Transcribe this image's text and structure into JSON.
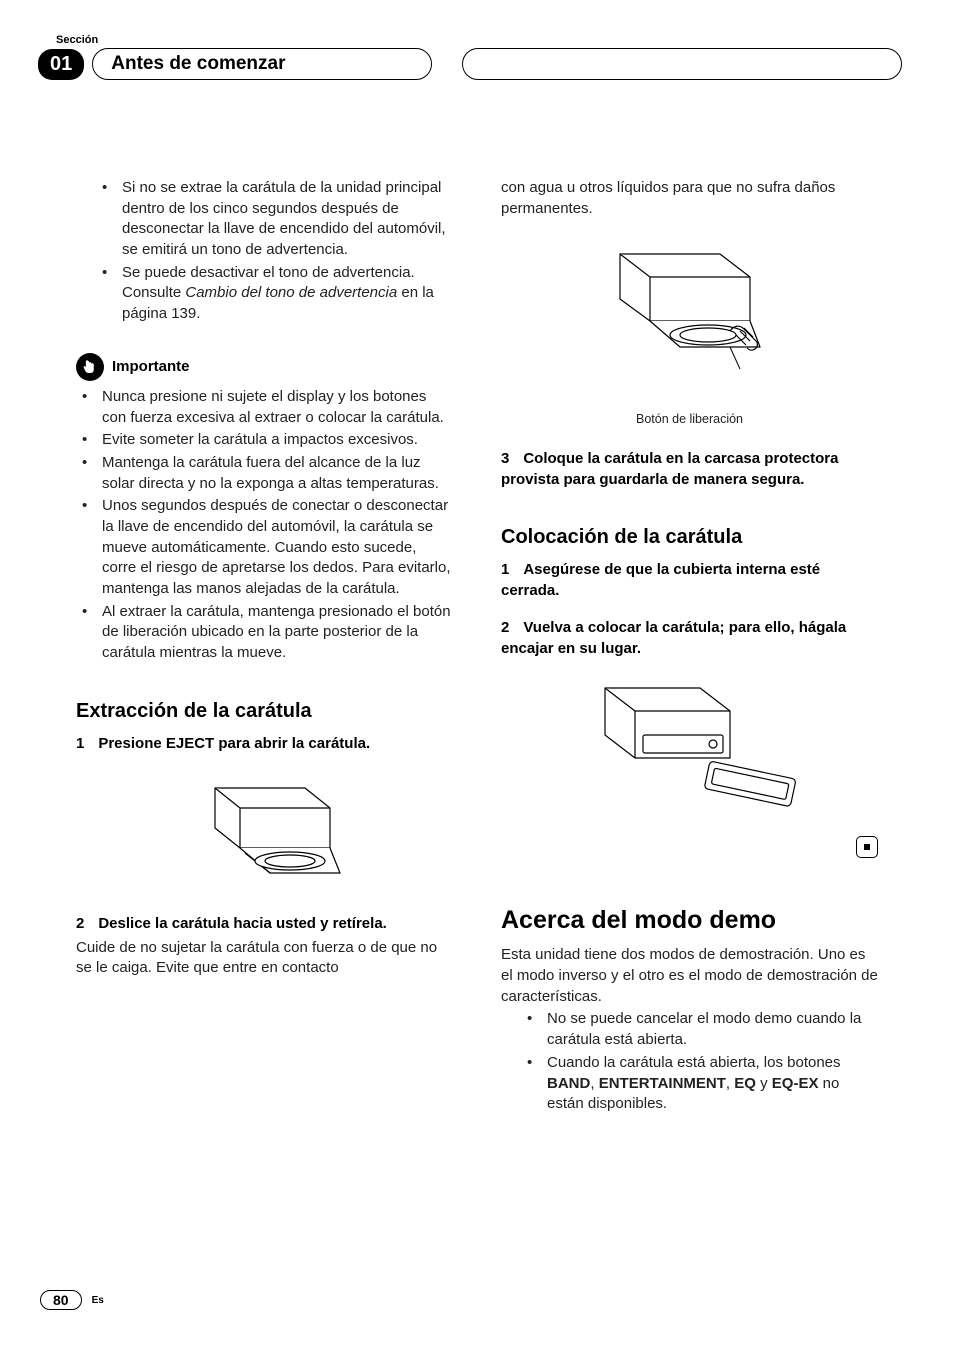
{
  "header": {
    "section_label": "Sección",
    "section_number": "01",
    "title": "Antes de comenzar"
  },
  "left_col": {
    "top_bullets": [
      "Si no se extrae la carátula de la unidad principal dentro de los cinco segundos después de desconectar la llave de encendido del automóvil, se emitirá un tono de advertencia.",
      "Se puede desactivar el tono de advertencia. Consulte Cambio del tono de advertencia en la página 139."
    ],
    "italic_segment": "Cambio del tono de advertencia",
    "important_label": "Importante",
    "important_bullets": [
      "Nunca presione ni sujete el display y los botones con fuerza excesiva al extraer o colocar la carátula.",
      "Evite someter la carátula a impactos excesivos.",
      "Mantenga la carátula fuera del alcance de la luz solar directa y no la exponga a altas temperaturas.",
      "Unos segundos después de conectar o desconectar la llave de encendido del automóvil, la carátula se mueve automáticamente. Cuando esto sucede, corre el riesgo de apretarse los dedos. Para evitarlo, mantenga las manos alejadas de la carátula.",
      "Al extraer la carátula, mantenga presionado el botón de liberación ubicado en la parte posterior de la carátula mientras la mueve."
    ],
    "h2_extraction": "Extracción de la carátula",
    "step1_num": "1",
    "step1_text": "Presione EJECT para abrir la carátula.",
    "step2_num": "2",
    "step2_text": "Deslice la carátula hacia usted y retírela.",
    "step2_follow": "Cuide de no sujetar la carátula con fuerza o de que no se le caiga. Evite que entre en contacto"
  },
  "right_col": {
    "continuation": "con agua u otros líquidos para que no sufra daños permanentes.",
    "fig_caption": "Botón de liberación",
    "step3_num": "3",
    "step3_text": "Coloque la carátula en la carcasa protectora provista para guardarla de manera segura.",
    "h2_placement": "Colocación de la carátula",
    "p_step1_num": "1",
    "p_step1_text": "Asegúrese de que la cubierta interna esté cerrada.",
    "p_step2_num": "2",
    "p_step2_text": "Vuelva a colocar la carátula; para ello, hágala encajar en su lugar.",
    "h1_demo": "Acerca del modo demo",
    "demo_intro": "Esta unidad tiene dos modos de demostración. Uno es el modo inverso y el otro es el modo de demostración de características.",
    "demo_bullets": [
      "No se puede cancelar el modo demo cuando la carátula está abierta.",
      "Cuando la carátula está abierta, los botones BAND, ENTERTAINMENT, EQ y EQ-EX no están disponibles."
    ],
    "bold_terms": [
      "BAND",
      "ENTERTAINMENT",
      "EQ",
      "EQ-EX"
    ]
  },
  "footer": {
    "page_number": "80",
    "lang": "Es"
  }
}
